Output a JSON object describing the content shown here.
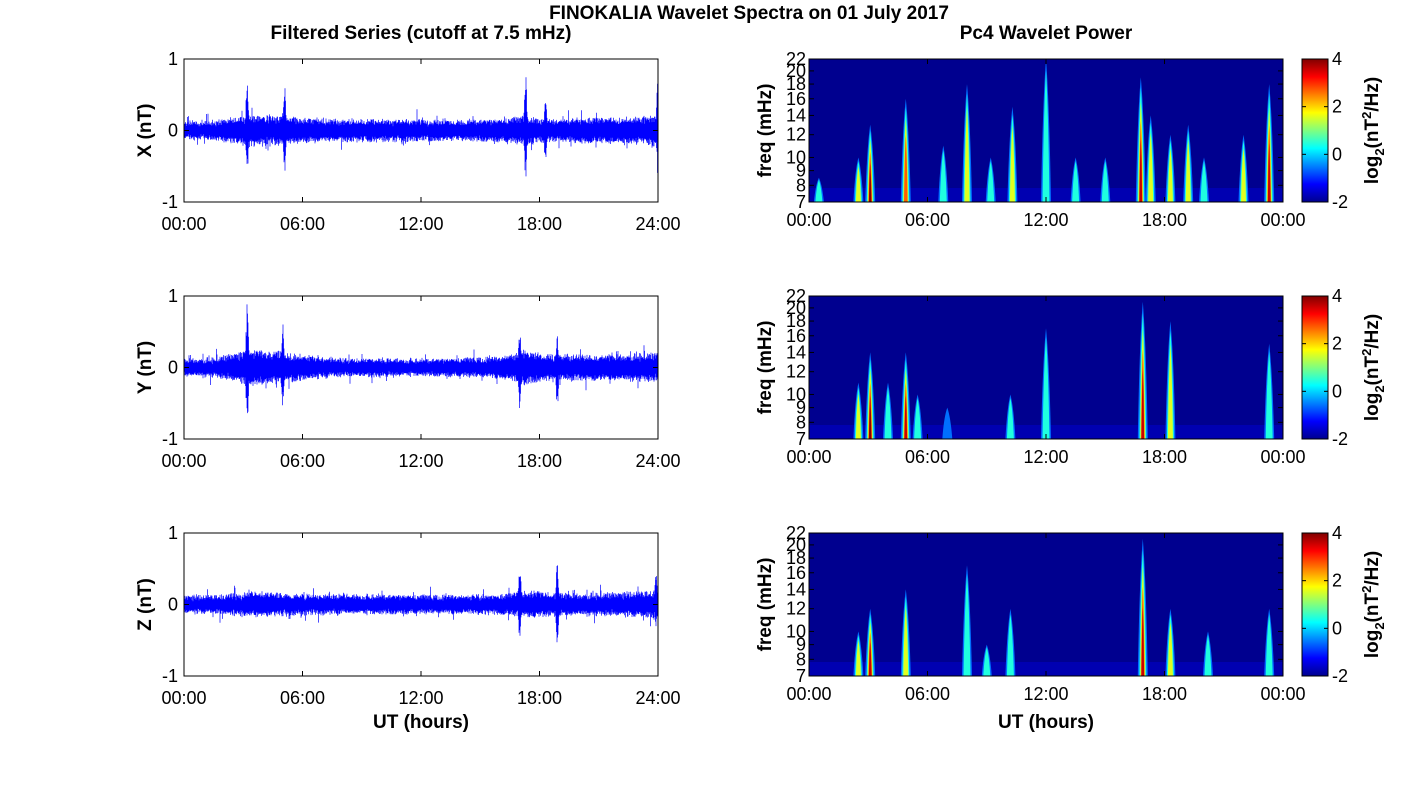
{
  "chart_data": {
    "type": "figure",
    "title": "FINOKALIA Wavelet Spectra on 01 July 2017",
    "panels": [
      {
        "id": "X-series",
        "type": "line",
        "column_title": "Filtered Series (cutoff at 7.5 mHz)",
        "ylabel": "X (nT)",
        "xlabel": "",
        "ylim": [
          -1,
          1
        ],
        "yticks": [
          "1",
          "0",
          "-1"
        ],
        "xticks": [
          "00:00",
          "06:00",
          "12:00",
          "18:00",
          "24:00"
        ],
        "x_hours_range": [
          0,
          24
        ],
        "color": "#0000ff",
        "noise_amplitude_nT": 0.14,
        "envelope_hours": [
          0,
          1.5,
          3,
          3.1,
          5,
          5.2,
          8,
          10,
          12,
          14,
          16,
          17.3,
          18,
          19,
          20,
          22,
          24
        ],
        "envelope_amp": [
          0.12,
          0.14,
          0.2,
          0.22,
          0.2,
          0.18,
          0.15,
          0.16,
          0.15,
          0.15,
          0.16,
          0.2,
          0.17,
          0.15,
          0.18,
          0.17,
          0.22
        ],
        "spikes": [
          {
            "hour": 3.2,
            "max": 0.78,
            "min": -0.68
          },
          {
            "hour": 5.1,
            "max": 0.66,
            "min": -0.6
          },
          {
            "hour": 17.3,
            "max": 0.82,
            "min": -0.72
          },
          {
            "hour": 18.3,
            "max": 0.5,
            "min": -0.45
          },
          {
            "hour": 24,
            "max": 0.82,
            "min": -0.72
          }
        ]
      },
      {
        "id": "X-power",
        "type": "heatmap",
        "column_title": "Pc4 Wavelet Power",
        "ylabel": "freq (mHz)",
        "xlabel": "",
        "yticks": [
          "22",
          "20",
          "18",
          "16",
          "14",
          "12",
          "10",
          "9",
          "8",
          "7"
        ],
        "xticks": [
          "00:00",
          "06:00",
          "12:00",
          "18:00",
          "00:00"
        ],
        "colorbar_label": "log2(nT2/Hz)",
        "colorbar_ticks": [
          "4",
          "2",
          "0",
          "-2"
        ],
        "colorbar_range": [
          -2,
          4
        ],
        "bursts": [
          {
            "hour": 0.5,
            "level": 0.35,
            "top_mHz": 8.5
          },
          {
            "hour": 2.5,
            "level": 0.45,
            "top_mHz": 10
          },
          {
            "hour": 3.1,
            "level": 0.95,
            "top_mHz": 13
          },
          {
            "hour": 4.9,
            "level": 0.75,
            "top_mHz": 16
          },
          {
            "hour": 6.8,
            "level": 0.4,
            "top_mHz": 11
          },
          {
            "hour": 8.0,
            "level": 0.45,
            "top_mHz": 18
          },
          {
            "hour": 9.2,
            "level": 0.3,
            "top_mHz": 10
          },
          {
            "hour": 10.3,
            "level": 0.45,
            "top_mHz": 15
          },
          {
            "hour": 12.0,
            "level": 0.3,
            "top_mHz": 22
          },
          {
            "hour": 13.5,
            "level": 0.3,
            "top_mHz": 10
          },
          {
            "hour": 15.0,
            "level": 0.25,
            "top_mHz": 10
          },
          {
            "hour": 16.8,
            "level": 0.8,
            "top_mHz": 19
          },
          {
            "hour": 17.3,
            "level": 0.45,
            "top_mHz": 14
          },
          {
            "hour": 18.3,
            "level": 0.6,
            "top_mHz": 12
          },
          {
            "hour": 19.2,
            "level": 0.5,
            "top_mHz": 13
          },
          {
            "hour": 20.0,
            "level": 0.35,
            "top_mHz": 10
          },
          {
            "hour": 22.0,
            "level": 0.45,
            "top_mHz": 12
          },
          {
            "hour": 23.3,
            "level": 0.85,
            "top_mHz": 18
          }
        ]
      },
      {
        "id": "Y-series",
        "type": "line",
        "column_title": "",
        "ylabel": "Y (nT)",
        "xlabel": "",
        "ylim": [
          -1,
          1
        ],
        "yticks": [
          "1",
          "0",
          "-1"
        ],
        "xticks": [
          "00:00",
          "06:00",
          "12:00",
          "18:00",
          "24:00"
        ],
        "x_hours_range": [
          0,
          24
        ],
        "color": "#0000ff",
        "noise_amplitude_nT": 0.14,
        "envelope_hours": [
          0,
          1.5,
          3,
          3.1,
          5,
          5.2,
          8,
          10,
          12,
          14,
          16,
          17.3,
          18,
          19,
          20,
          22,
          24
        ],
        "envelope_amp": [
          0.12,
          0.13,
          0.22,
          0.25,
          0.22,
          0.2,
          0.12,
          0.13,
          0.12,
          0.13,
          0.15,
          0.25,
          0.2,
          0.18,
          0.18,
          0.18,
          0.2
        ],
        "spikes": [
          {
            "hour": 3.2,
            "max": 0.9,
            "min": -0.85
          },
          {
            "hour": 5.0,
            "max": 0.62,
            "min": -0.55
          },
          {
            "hour": 17.0,
            "max": 0.55,
            "min": -0.6
          },
          {
            "hour": 18.9,
            "max": 0.45,
            "min": -0.6
          }
        ]
      },
      {
        "id": "Y-power",
        "type": "heatmap",
        "column_title": "",
        "ylabel": "freq (mHz)",
        "xlabel": "",
        "yticks": [
          "22",
          "20",
          "18",
          "16",
          "14",
          "12",
          "10",
          "9",
          "8",
          "7"
        ],
        "xticks": [
          "00:00",
          "06:00",
          "12:00",
          "18:00",
          "00:00"
        ],
        "colorbar_label": "log2(nT2/Hz)",
        "colorbar_ticks": [
          "4",
          "2",
          "0",
          "-2"
        ],
        "colorbar_range": [
          -2,
          4
        ],
        "bursts": [
          {
            "hour": 2.5,
            "level": 0.5,
            "top_mHz": 11
          },
          {
            "hour": 3.1,
            "level": 1.0,
            "top_mHz": 14
          },
          {
            "hour": 4.0,
            "level": 0.4,
            "top_mHz": 11
          },
          {
            "hour": 4.9,
            "level": 0.85,
            "top_mHz": 14
          },
          {
            "hour": 5.5,
            "level": 0.3,
            "top_mHz": 10
          },
          {
            "hour": 7.0,
            "level": 0.2,
            "top_mHz": 9
          },
          {
            "hour": 10.2,
            "level": 0.25,
            "top_mHz": 10
          },
          {
            "hour": 12.0,
            "level": 0.25,
            "top_mHz": 17
          },
          {
            "hour": 16.9,
            "level": 0.85,
            "top_mHz": 21
          },
          {
            "hour": 18.3,
            "level": 0.6,
            "top_mHz": 18
          },
          {
            "hour": 23.3,
            "level": 0.3,
            "top_mHz": 15
          }
        ]
      },
      {
        "id": "Z-series",
        "type": "line",
        "column_title": "",
        "ylabel": "Z (nT)",
        "xlabel": "UT (hours)",
        "ylim": [
          -1,
          1
        ],
        "yticks": [
          "1",
          "0",
          "-1"
        ],
        "xticks": [
          "00:00",
          "06:00",
          "12:00",
          "18:00",
          "24:00"
        ],
        "x_hours_range": [
          0,
          24
        ],
        "color": "#0000ff",
        "noise_amplitude_nT": 0.14,
        "envelope_hours": [
          0,
          1.5,
          3,
          3.1,
          5,
          5.2,
          8,
          10,
          12,
          14,
          16,
          17.3,
          18,
          19,
          20,
          22,
          24
        ],
        "envelope_amp": [
          0.12,
          0.13,
          0.15,
          0.18,
          0.16,
          0.15,
          0.14,
          0.14,
          0.13,
          0.13,
          0.14,
          0.18,
          0.18,
          0.16,
          0.15,
          0.16,
          0.2
        ],
        "spikes": [
          {
            "hour": 17.0,
            "max": 0.65,
            "min": -0.5
          },
          {
            "hour": 18.9,
            "max": 0.62,
            "min": -0.72
          },
          {
            "hour": 23.9,
            "max": 0.45,
            "min": -0.35
          }
        ]
      },
      {
        "id": "Z-power",
        "type": "heatmap",
        "column_title": "",
        "ylabel": "freq (mHz)",
        "xlabel": "UT (hours)",
        "yticks": [
          "22",
          "20",
          "18",
          "16",
          "14",
          "12",
          "10",
          "9",
          "8",
          "7"
        ],
        "xticks": [
          "00:00",
          "06:00",
          "12:00",
          "18:00",
          "00:00"
        ],
        "colorbar_label": "log2(nT2/Hz)",
        "colorbar_ticks": [
          "4",
          "2",
          "0",
          "-2"
        ],
        "colorbar_range": [
          -2,
          4
        ],
        "bursts": [
          {
            "hour": 2.5,
            "level": 0.45,
            "top_mHz": 10
          },
          {
            "hour": 3.1,
            "level": 0.85,
            "top_mHz": 12
          },
          {
            "hour": 4.9,
            "level": 0.45,
            "top_mHz": 14
          },
          {
            "hour": 8.0,
            "level": 0.35,
            "top_mHz": 17
          },
          {
            "hour": 9.0,
            "level": 0.25,
            "top_mHz": 9
          },
          {
            "hour": 10.2,
            "level": 0.35,
            "top_mHz": 12
          },
          {
            "hour": 16.9,
            "level": 0.9,
            "top_mHz": 21
          },
          {
            "hour": 18.3,
            "level": 0.55,
            "top_mHz": 12
          },
          {
            "hour": 20.2,
            "level": 0.35,
            "top_mHz": 10
          },
          {
            "hour": 23.3,
            "level": 0.3,
            "top_mHz": 12
          }
        ]
      }
    ]
  }
}
